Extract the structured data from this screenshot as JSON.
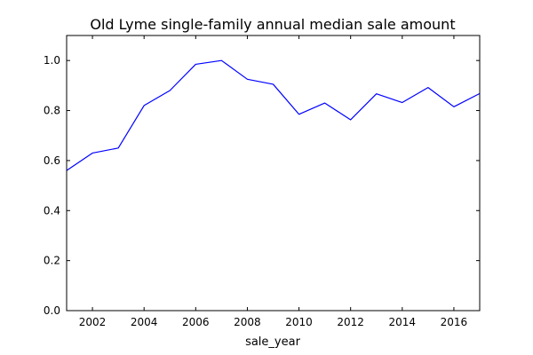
{
  "chart_data": {
    "type": "line",
    "title": "Old Lyme single-family annual median sale amount",
    "xlabel": "sale_year",
    "ylabel": "",
    "xlim": [
      2001,
      2017
    ],
    "ylim": [
      0.0,
      1.1
    ],
    "xticks": [
      2002,
      2004,
      2006,
      2008,
      2010,
      2012,
      2014,
      2016
    ],
    "xtick_labels": [
      "2002",
      "2004",
      "2006",
      "2008",
      "2010",
      "2012",
      "2014",
      "2016"
    ],
    "yticks": [
      0.0,
      0.2,
      0.4,
      0.6,
      0.8,
      1.0
    ],
    "ytick_labels": [
      "0.0",
      "0.2",
      "0.4",
      "0.6",
      "0.8",
      "1.0"
    ],
    "grid": false,
    "legend": "none",
    "series": [
      {
        "color": "#0000ff",
        "x": [
          2001,
          2002,
          2003,
          2004,
          2005,
          2006,
          2007,
          2008,
          2009,
          2010,
          2011,
          2012,
          2013,
          2014,
          2015,
          2016,
          2017
        ],
        "values": [
          0.56,
          0.63,
          0.65,
          0.82,
          0.88,
          0.985,
          1.0,
          0.925,
          0.905,
          0.785,
          0.83,
          0.763,
          0.867,
          0.832,
          0.892,
          0.815,
          0.868
        ]
      }
    ]
  }
}
